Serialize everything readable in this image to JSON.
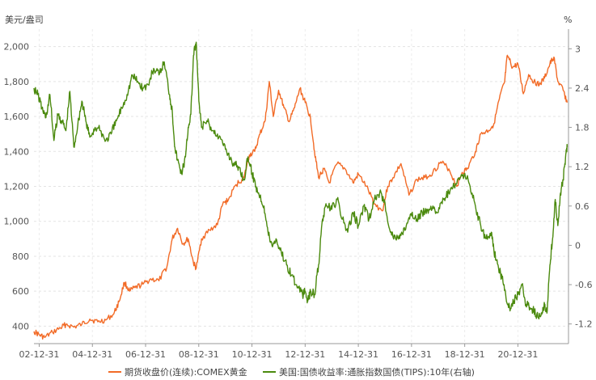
{
  "chart_data": {
    "type": "line",
    "left_axis_unit": "美元/盎司",
    "right_axis_unit": "%",
    "left_ylim": [
      300,
      2100
    ],
    "right_ylim": [
      -1.5,
      3.3
    ],
    "left_ticks": [
      "400",
      "600",
      "800",
      "1,000",
      "1,200",
      "1,400",
      "1,600",
      "1,800",
      "2,000"
    ],
    "left_tick_values": [
      400,
      600,
      800,
      1000,
      1200,
      1400,
      1600,
      1800,
      2000
    ],
    "right_ticks": [
      "-1.2",
      "-0.6",
      "0",
      "0.6",
      "1.2",
      "1.8",
      "2.4",
      "3"
    ],
    "right_tick_values": [
      -1.2,
      -0.6,
      0,
      0.6,
      1.2,
      1.8,
      2.4,
      3.0
    ],
    "x_ticks": [
      "02-12-31",
      "04-12-31",
      "06-12-31",
      "08-12-31",
      "10-12-31",
      "12-12-31",
      "14-12-31",
      "16-12-31",
      "18-12-31",
      "20-12-31"
    ],
    "x_range": [
      2002.8,
      2022.9
    ],
    "x_tick_values": [
      2002.997,
      2004.997,
      2006.997,
      2008.997,
      2010.997,
      2012.997,
      2014.997,
      2016.997,
      2018.997,
      2020.997
    ],
    "grid": true,
    "legend_position": "bottom",
    "series": [
      {
        "name": "期货收盘价(连续):COMEX黄金",
        "axis": "left",
        "color": "#f26b27",
        "x": [
          2002.8,
          2003.0,
          2003.2,
          2003.5,
          2003.8,
          2004.0,
          2004.3,
          2004.6,
          2004.9,
          2005.2,
          2005.5,
          2005.8,
          2006.0,
          2006.2,
          2006.4,
          2006.6,
          2006.9,
          2007.2,
          2007.5,
          2007.8,
          2008.0,
          2008.2,
          2008.4,
          2008.6,
          2008.8,
          2008.9,
          2009.1,
          2009.4,
          2009.7,
          2009.9,
          2010.1,
          2010.4,
          2010.7,
          2010.9,
          2011.1,
          2011.3,
          2011.5,
          2011.65,
          2011.8,
          2012.0,
          2012.2,
          2012.4,
          2012.6,
          2012.8,
          2013.0,
          2013.2,
          2013.35,
          2013.5,
          2013.7,
          2013.9,
          2014.2,
          2014.5,
          2014.8,
          2015.0,
          2015.3,
          2015.6,
          2015.9,
          2016.1,
          2016.3,
          2016.6,
          2016.9,
          2017.2,
          2017.5,
          2017.8,
          2018.1,
          2018.4,
          2018.7,
          2018.9,
          2019.1,
          2019.4,
          2019.6,
          2019.9,
          2020.1,
          2020.3,
          2020.5,
          2020.6,
          2020.8,
          2021.0,
          2021.2,
          2021.4,
          2021.6,
          2021.8,
          2022.0,
          2022.2,
          2022.35,
          2022.5,
          2022.7,
          2022.85
        ],
        "values": [
          370,
          350,
          335,
          365,
          390,
          410,
          395,
          410,
          440,
          425,
          435,
          470,
          540,
          650,
          600,
          620,
          640,
          670,
          660,
          740,
          900,
          960,
          870,
          900,
          760,
          730,
          900,
          950,
          980,
          1100,
          1120,
          1210,
          1250,
          1380,
          1400,
          1500,
          1580,
          1800,
          1600,
          1750,
          1650,
          1570,
          1650,
          1760,
          1680,
          1590,
          1400,
          1250,
          1300,
          1220,
          1330,
          1300,
          1220,
          1270,
          1200,
          1100,
          1060,
          1200,
          1250,
          1330,
          1150,
          1240,
          1250,
          1280,
          1340,
          1300,
          1200,
          1280,
          1300,
          1400,
          1500,
          1520,
          1560,
          1700,
          1800,
          1950,
          1880,
          1900,
          1730,
          1840,
          1800,
          1780,
          1820,
          1900,
          1940,
          1800,
          1750,
          1680
        ]
      },
      {
        "name": "美国:国债收益率:通胀指数国债(TIPS):10年(右轴)",
        "axis": "right",
        "color": "#4b8a0e",
        "x": [
          2002.8,
          2002.95,
          2003.1,
          2003.25,
          2003.4,
          2003.55,
          2003.7,
          2003.85,
          2004.0,
          2004.15,
          2004.3,
          2004.45,
          2004.6,
          2004.75,
          2004.9,
          2005.1,
          2005.3,
          2005.5,
          2005.7,
          2005.9,
          2006.1,
          2006.3,
          2006.5,
          2006.7,
          2006.9,
          2007.1,
          2007.3,
          2007.5,
          2007.7,
          2007.9,
          2008.0,
          2008.1,
          2008.2,
          2008.35,
          2008.5,
          2008.6,
          2008.7,
          2008.8,
          2008.9,
          2009.0,
          2009.1,
          2009.3,
          2009.5,
          2009.7,
          2009.9,
          2010.1,
          2010.3,
          2010.5,
          2010.7,
          2010.85,
          2011.0,
          2011.15,
          2011.3,
          2011.45,
          2011.6,
          2011.75,
          2011.9,
          2012.1,
          2012.3,
          2012.5,
          2012.7,
          2012.9,
          2013.0,
          2013.1,
          2013.2,
          2013.35,
          2013.5,
          2013.65,
          2013.8,
          2014.0,
          2014.2,
          2014.4,
          2014.6,
          2014.8,
          2015.0,
          2015.2,
          2015.4,
          2015.6,
          2015.8,
          2016.0,
          2016.2,
          2016.4,
          2016.6,
          2016.8,
          2017.0,
          2017.2,
          2017.4,
          2017.6,
          2017.8,
          2018.0,
          2018.2,
          2018.4,
          2018.6,
          2018.8,
          2019.0,
          2019.2,
          2019.4,
          2019.6,
          2019.8,
          2020.0,
          2020.1,
          2020.25,
          2020.4,
          2020.55,
          2020.7,
          2020.85,
          2021.0,
          2021.15,
          2021.3,
          2021.45,
          2021.6,
          2021.75,
          2021.9,
          2022.0,
          2022.1,
          2022.2,
          2022.3,
          2022.4,
          2022.5,
          2022.6,
          2022.7,
          2022.8,
          2022.85
        ],
        "values": [
          2.4,
          2.3,
          2.1,
          1.95,
          2.3,
          1.6,
          2.0,
          1.9,
          1.75,
          2.35,
          1.5,
          1.85,
          2.2,
          1.9,
          1.65,
          1.8,
          1.75,
          1.6,
          1.7,
          1.9,
          2.1,
          2.3,
          2.6,
          2.5,
          2.4,
          2.45,
          2.7,
          2.6,
          2.8,
          2.3,
          2.05,
          1.5,
          1.3,
          1.1,
          1.35,
          1.8,
          2.0,
          2.9,
          3.1,
          2.2,
          1.8,
          1.9,
          1.75,
          1.7,
          1.55,
          1.4,
          1.25,
          1.2,
          1.0,
          1.35,
          1.1,
          0.9,
          0.75,
          0.6,
          0.2,
          0.0,
          0.1,
          -0.1,
          -0.3,
          -0.45,
          -0.65,
          -0.75,
          -0.7,
          -0.85,
          -0.7,
          -0.75,
          -0.3,
          0.4,
          0.6,
          0.55,
          0.7,
          0.4,
          0.2,
          0.5,
          0.3,
          0.6,
          0.4,
          0.7,
          0.8,
          0.65,
          0.2,
          0.1,
          0.15,
          0.3,
          0.45,
          0.4,
          0.5,
          0.55,
          0.6,
          0.5,
          0.7,
          0.8,
          0.9,
          1.0,
          1.1,
          0.9,
          0.6,
          0.3,
          0.1,
          0.2,
          -0.1,
          -0.3,
          -0.5,
          -0.8,
          -1.0,
          -0.85,
          -0.75,
          -0.6,
          -0.9,
          -0.95,
          -1.0,
          -1.1,
          -1.05,
          -0.9,
          -1.0,
          -0.3,
          0.1,
          0.7,
          0.3,
          0.8,
          1.0,
          1.4,
          1.5
        ]
      }
    ]
  }
}
